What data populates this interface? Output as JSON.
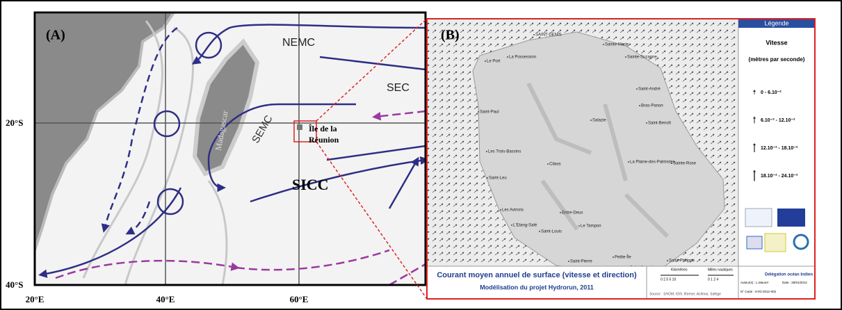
{
  "panel_a": {
    "label": "(A)",
    "currents": [
      "NEMC",
      "SEC",
      "SEMC",
      "SICC"
    ],
    "island": "Madagascar",
    "site_label": [
      "Île de la",
      "Réunion"
    ],
    "lat_labels": [
      "20°S",
      "40°S"
    ],
    "lon_labels": [
      "20°E",
      "40°E",
      "60°E"
    ]
  },
  "panel_b": {
    "label": "(B)",
    "places": [
      "SAINT-DENIS",
      "Sainte-Marie",
      "Sainte-Suzanne",
      "Le Port",
      "La Possession",
      "Saint-André",
      "Bras-Panon",
      "Saint-Paul",
      "Salazie",
      "Saint-Benoît",
      "Les Trois-Bassins",
      "Cilaos",
      "La Plaine-des-Palmistes",
      "Sainte-Rose",
      "Saint-Leu",
      "Les Avirons",
      "Entre-Deux",
      "L'Etang-Salé",
      "Saint-Louis",
      "Le Tampon",
      "Saint-Pierre",
      "Petite-Île",
      "Saint-Joseph",
      "Saint-Philippe"
    ],
    "legend": {
      "header": "Légende",
      "title": "Vitesse",
      "unit": "(mètres par seconde)",
      "entries": [
        "0 - 6.10⁻²",
        "6.10⁻² - 12.10⁻²",
        "12.10⁻² - 18.10⁻²",
        "18.10⁻² - 24.10⁻²"
      ]
    },
    "footer": {
      "title": "Courant moyen annuel de surface (vitesse et direction)",
      "subtitle": "Modélisation du projet Hydrorun, 2011",
      "scale_km": "Kilomètres",
      "scale_km_ticks": "0  2.5  5        10",
      "scale_nm": "Milles nautiques",
      "scale_nm_ticks": "0   1   2      4",
      "source": "Source : SHOM, IGN, Ifremer, Actimar, Safege",
      "org": "Délégation océan Indien",
      "author": "Auteur(s) : L.Maurel",
      "date": "Date : 28/01/2012",
      "map_no": "N° Carte : HYD-2012-002"
    }
  }
}
